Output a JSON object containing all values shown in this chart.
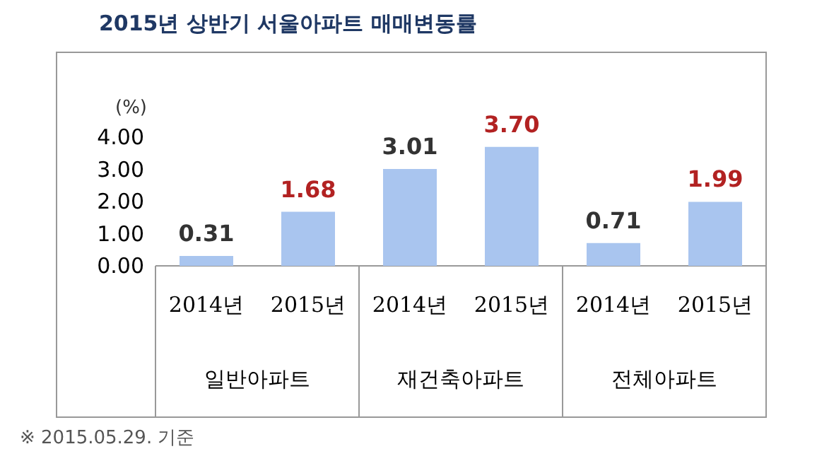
{
  "chart_data": {
    "type": "bar",
    "title": "2015년 상반기 서울아파트 매매변동률",
    "ylabel": "(%)",
    "categories": [
      "2014년",
      "2015년",
      "2014년",
      "2015년",
      "2014년",
      "2015년"
    ],
    "values": [
      0.31,
      1.68,
      3.01,
      3.7,
      0.71,
      1.99
    ],
    "value_labels": [
      "0.31",
      "1.68",
      "3.01",
      "3.70",
      "0.71",
      "1.99"
    ],
    "color": "#a9c5ef",
    "ylim": [
      0,
      4
    ],
    "yticks": [
      {
        "value": 0,
        "label": "0.00"
      },
      {
        "value": 1,
        "label": "1.00"
      },
      {
        "value": 2,
        "label": "2.00"
      },
      {
        "value": 3,
        "label": "3.00"
      },
      {
        "value": 4,
        "label": "4.00"
      }
    ],
    "annotations": [
      "일반아파트",
      "재건축아파트",
      "전체아파트",
      "※ 2015.05.29. 기준"
    ]
  }
}
